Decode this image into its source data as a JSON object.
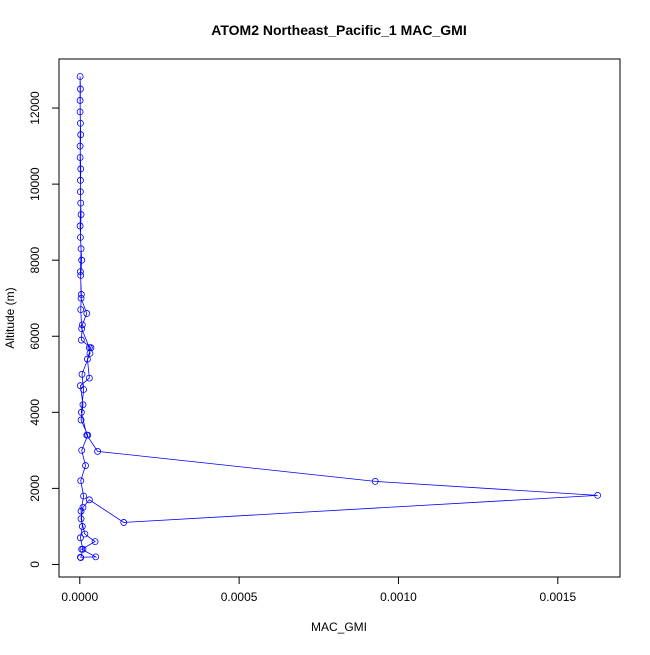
{
  "chart_data": {
    "type": "line",
    "title": "ATOM2 Northeast_Pacific_1 MAC_GMI",
    "xlabel": "MAC_GMI",
    "ylabel": "Altitude (m)",
    "color": "#0000ff",
    "x": [
      3e-06,
      1e-05,
      2e-06,
      8e-06,
      4e-06,
      1.2e-05,
      3e-06,
      1.8e-05,
      6e-06,
      2.5e-05,
      4e-06,
      1e-05,
      2e-06,
      3e-05,
      2.4e-05,
      3.5e-05,
      5e-06,
      8e-06,
      2.2e-05,
      4e-06,
      3e-06,
      6e-06,
      2e-06,
      4e-06,
      2e-06,
      3e-06,
      1e-06,
      2e-06,
      1e-06,
      1e-06,
      2e-06,
      1e-06,
      3e-06,
      1e-06,
      2e-06,
      3e-06,
      1e-06,
      4e-06,
      2e-06,
      5e-06,
      3e-06,
      6e-06,
      3e-05,
      3.2e-05,
      7e-06,
      1.2e-05,
      5e-06,
      2.2e-05,
      5.6e-05,
      0.000927,
      0.001625,
      0.000138,
      3e-05,
      1e-05,
      4e-06,
      1.6e-05,
      4.8e-05,
      6e-06,
      5e-05,
      2e-06
    ],
    "values": [
      180,
      400,
      700,
      1000,
      1400,
      1800,
      2200,
      2600,
      3000,
      3400,
      3800,
      4200,
      4700,
      4900,
      5400,
      5700,
      5900,
      6300,
      6600,
      7000,
      7600,
      8000,
      8600,
      9200,
      9800,
      10400,
      11000,
      11600,
      12200,
      12830,
      12500,
      11900,
      11300,
      10700,
      10100,
      9500,
      8900,
      8300,
      7700,
      7100,
      6700,
      6200,
      5700,
      5550,
      5000,
      4600,
      4000,
      3400,
      2974,
      2184,
      1816,
      1105,
      1700,
      1500,
      1200,
      800,
      600,
      400,
      200,
      190
    ],
    "xlim": [
      -6.52e-05,
      0.0016952
    ],
    "ylim": [
      -330,
      13290
    ],
    "xticks": [
      {
        "value": 0,
        "label": "0.0000"
      },
      0.0005,
      {
        "value": 0.001,
        "label": "0.0010"
      },
      0.0015
    ],
    "yticks": [
      0,
      2000,
      4000,
      6000,
      8000,
      10000,
      12000
    ]
  }
}
